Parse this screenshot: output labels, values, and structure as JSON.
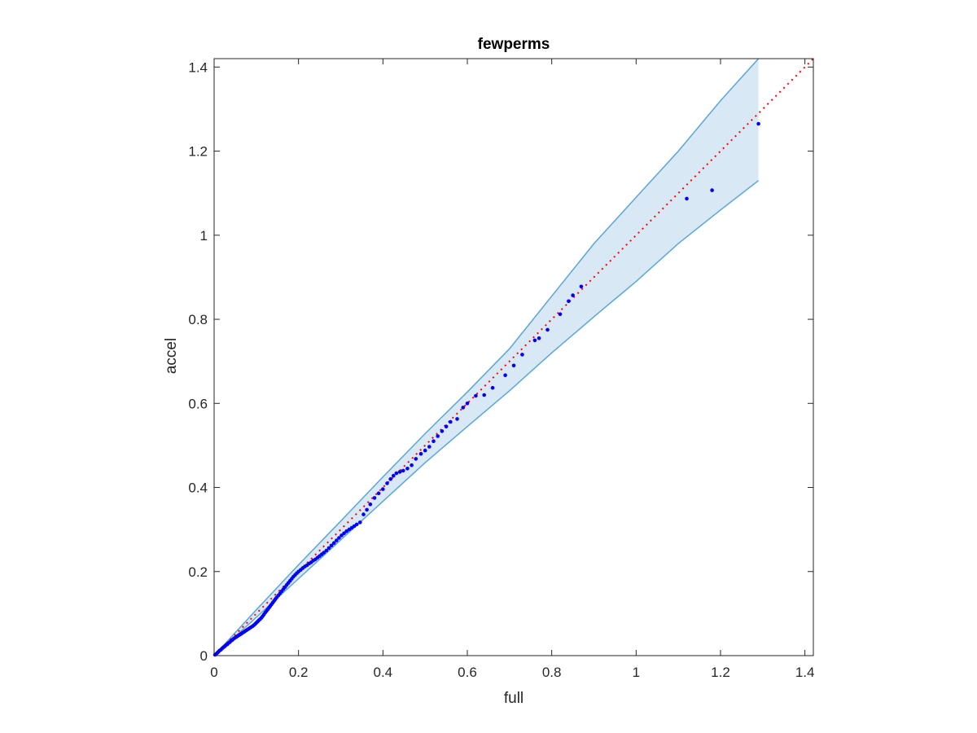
{
  "chart_data": {
    "type": "scatter",
    "title": "fewperms",
    "xlabel": "full",
    "ylabel": "accel",
    "xlim": [
      0,
      1.42
    ],
    "ylim": [
      0,
      1.42
    ],
    "xticks": [
      0,
      0.2,
      0.4,
      0.6,
      0.8,
      1,
      1.2,
      1.4
    ],
    "yticks": [
      0,
      0.2,
      0.4,
      0.6,
      0.8,
      1,
      1.2,
      1.4
    ],
    "xtick_labels": [
      "0",
      "0.2",
      "0.4",
      "0.6",
      "0.8",
      "1",
      "1.2",
      "1.4"
    ],
    "ytick_labels": [
      "0",
      "0.2",
      "0.4",
      "0.6",
      "0.8",
      "1",
      "1.2",
      "1.4"
    ],
    "grid": false,
    "reference_line": {
      "style": "dotted",
      "color": "#ff0000",
      "points": [
        [
          0,
          0
        ],
        [
          1.42,
          1.42
        ]
      ]
    },
    "confidence_band": {
      "color": "#5aa6d8",
      "fill": "#d8e8f4",
      "upper": [
        [
          0,
          0
        ],
        [
          0.1,
          0.109
        ],
        [
          0.2,
          0.216
        ],
        [
          0.3,
          0.32
        ],
        [
          0.4,
          0.425
        ],
        [
          0.5,
          0.528
        ],
        [
          0.6,
          0.627
        ],
        [
          0.7,
          0.73
        ],
        [
          0.8,
          0.855
        ],
        [
          0.9,
          0.98
        ],
        [
          1.0,
          1.09
        ],
        [
          1.1,
          1.2
        ],
        [
          1.2,
          1.32
        ],
        [
          1.29,
          1.42
        ]
      ],
      "lower": [
        [
          0,
          0
        ],
        [
          0.1,
          0.091
        ],
        [
          0.2,
          0.183
        ],
        [
          0.3,
          0.275
        ],
        [
          0.4,
          0.367
        ],
        [
          0.5,
          0.459
        ],
        [
          0.6,
          0.545
        ],
        [
          0.7,
          0.63
        ],
        [
          0.8,
          0.72
        ],
        [
          0.9,
          0.806
        ],
        [
          1.0,
          0.89
        ],
        [
          1.1,
          0.98
        ],
        [
          1.2,
          1.06
        ],
        [
          1.29,
          1.13
        ]
      ]
    },
    "series": [
      {
        "color": "#0000ff",
        "points": [
          [
            0.002,
            0.002
          ],
          [
            0.005,
            0.004
          ],
          [
            0.008,
            0.007
          ],
          [
            0.01,
            0.009
          ],
          [
            0.013,
            0.012
          ],
          [
            0.016,
            0.014
          ],
          [
            0.019,
            0.017
          ],
          [
            0.022,
            0.02
          ],
          [
            0.025,
            0.022
          ],
          [
            0.028,
            0.025
          ],
          [
            0.031,
            0.027
          ],
          [
            0.034,
            0.03
          ],
          [
            0.037,
            0.032
          ],
          [
            0.04,
            0.035
          ],
          [
            0.043,
            0.037
          ],
          [
            0.046,
            0.04
          ],
          [
            0.049,
            0.042
          ],
          [
            0.052,
            0.044
          ],
          [
            0.055,
            0.046
          ],
          [
            0.058,
            0.048
          ],
          [
            0.061,
            0.05
          ],
          [
            0.064,
            0.052
          ],
          [
            0.067,
            0.054
          ],
          [
            0.07,
            0.056
          ],
          [
            0.073,
            0.058
          ],
          [
            0.076,
            0.06
          ],
          [
            0.079,
            0.062
          ],
          [
            0.082,
            0.064
          ],
          [
            0.085,
            0.066
          ],
          [
            0.088,
            0.068
          ],
          [
            0.091,
            0.07
          ],
          [
            0.094,
            0.072
          ],
          [
            0.097,
            0.075
          ],
          [
            0.1,
            0.078
          ],
          [
            0.103,
            0.081
          ],
          [
            0.106,
            0.084
          ],
          [
            0.109,
            0.087
          ],
          [
            0.112,
            0.09
          ],
          [
            0.115,
            0.094
          ],
          [
            0.118,
            0.098
          ],
          [
            0.121,
            0.102
          ],
          [
            0.124,
            0.106
          ],
          [
            0.127,
            0.11
          ],
          [
            0.13,
            0.114
          ],
          [
            0.133,
            0.118
          ],
          [
            0.136,
            0.122
          ],
          [
            0.139,
            0.126
          ],
          [
            0.142,
            0.13
          ],
          [
            0.145,
            0.134
          ],
          [
            0.148,
            0.138
          ],
          [
            0.152,
            0.143
          ],
          [
            0.156,
            0.148
          ],
          [
            0.16,
            0.153
          ],
          [
            0.164,
            0.158
          ],
          [
            0.168,
            0.163
          ],
          [
            0.172,
            0.168
          ],
          [
            0.176,
            0.173
          ],
          [
            0.18,
            0.178
          ],
          [
            0.184,
            0.183
          ],
          [
            0.188,
            0.188
          ],
          [
            0.192,
            0.192
          ],
          [
            0.196,
            0.196
          ],
          [
            0.2,
            0.2
          ],
          [
            0.205,
            0.204
          ],
          [
            0.21,
            0.208
          ],
          [
            0.215,
            0.212
          ],
          [
            0.22,
            0.215
          ],
          [
            0.225,
            0.219
          ],
          [
            0.23,
            0.222
          ],
          [
            0.235,
            0.226
          ],
          [
            0.24,
            0.229
          ],
          [
            0.245,
            0.233
          ],
          [
            0.25,
            0.237
          ],
          [
            0.255,
            0.241
          ],
          [
            0.26,
            0.245
          ],
          [
            0.266,
            0.25
          ],
          [
            0.272,
            0.256
          ],
          [
            0.278,
            0.262
          ],
          [
            0.284,
            0.268
          ],
          [
            0.29,
            0.274
          ],
          [
            0.296,
            0.28
          ],
          [
            0.302,
            0.286
          ],
          [
            0.308,
            0.291
          ],
          [
            0.314,
            0.296
          ],
          [
            0.32,
            0.3
          ],
          [
            0.326,
            0.304
          ],
          [
            0.332,
            0.308
          ],
          [
            0.338,
            0.312
          ],
          [
            0.346,
            0.317
          ],
          [
            0.354,
            0.336
          ],
          [
            0.362,
            0.347
          ],
          [
            0.37,
            0.36
          ],
          [
            0.38,
            0.375
          ],
          [
            0.39,
            0.386
          ],
          [
            0.4,
            0.396
          ],
          [
            0.41,
            0.41
          ],
          [
            0.418,
            0.42
          ],
          [
            0.425,
            0.428
          ],
          [
            0.432,
            0.434
          ],
          [
            0.44,
            0.437
          ],
          [
            0.448,
            0.44
          ],
          [
            0.458,
            0.445
          ],
          [
            0.468,
            0.453
          ],
          [
            0.478,
            0.468
          ],
          [
            0.49,
            0.48
          ],
          [
            0.5,
            0.488
          ],
          [
            0.51,
            0.497
          ],
          [
            0.52,
            0.51
          ],
          [
            0.53,
            0.522
          ],
          [
            0.54,
            0.534
          ],
          [
            0.55,
            0.545
          ],
          [
            0.56,
            0.556
          ],
          [
            0.576,
            0.563
          ],
          [
            0.59,
            0.59
          ],
          [
            0.6,
            0.6
          ],
          [
            0.62,
            0.618
          ],
          [
            0.64,
            0.62
          ],
          [
            0.66,
            0.637
          ],
          [
            0.69,
            0.667
          ],
          [
            0.71,
            0.69
          ],
          [
            0.73,
            0.716
          ],
          [
            0.76,
            0.75
          ],
          [
            0.77,
            0.755
          ],
          [
            0.79,
            0.775
          ],
          [
            0.82,
            0.812
          ],
          [
            0.84,
            0.843
          ],
          [
            0.85,
            0.857
          ],
          [
            0.87,
            0.878
          ],
          [
            1.12,
            1.087
          ],
          [
            1.18,
            1.107
          ],
          [
            1.29,
            1.265
          ]
        ]
      }
    ]
  }
}
